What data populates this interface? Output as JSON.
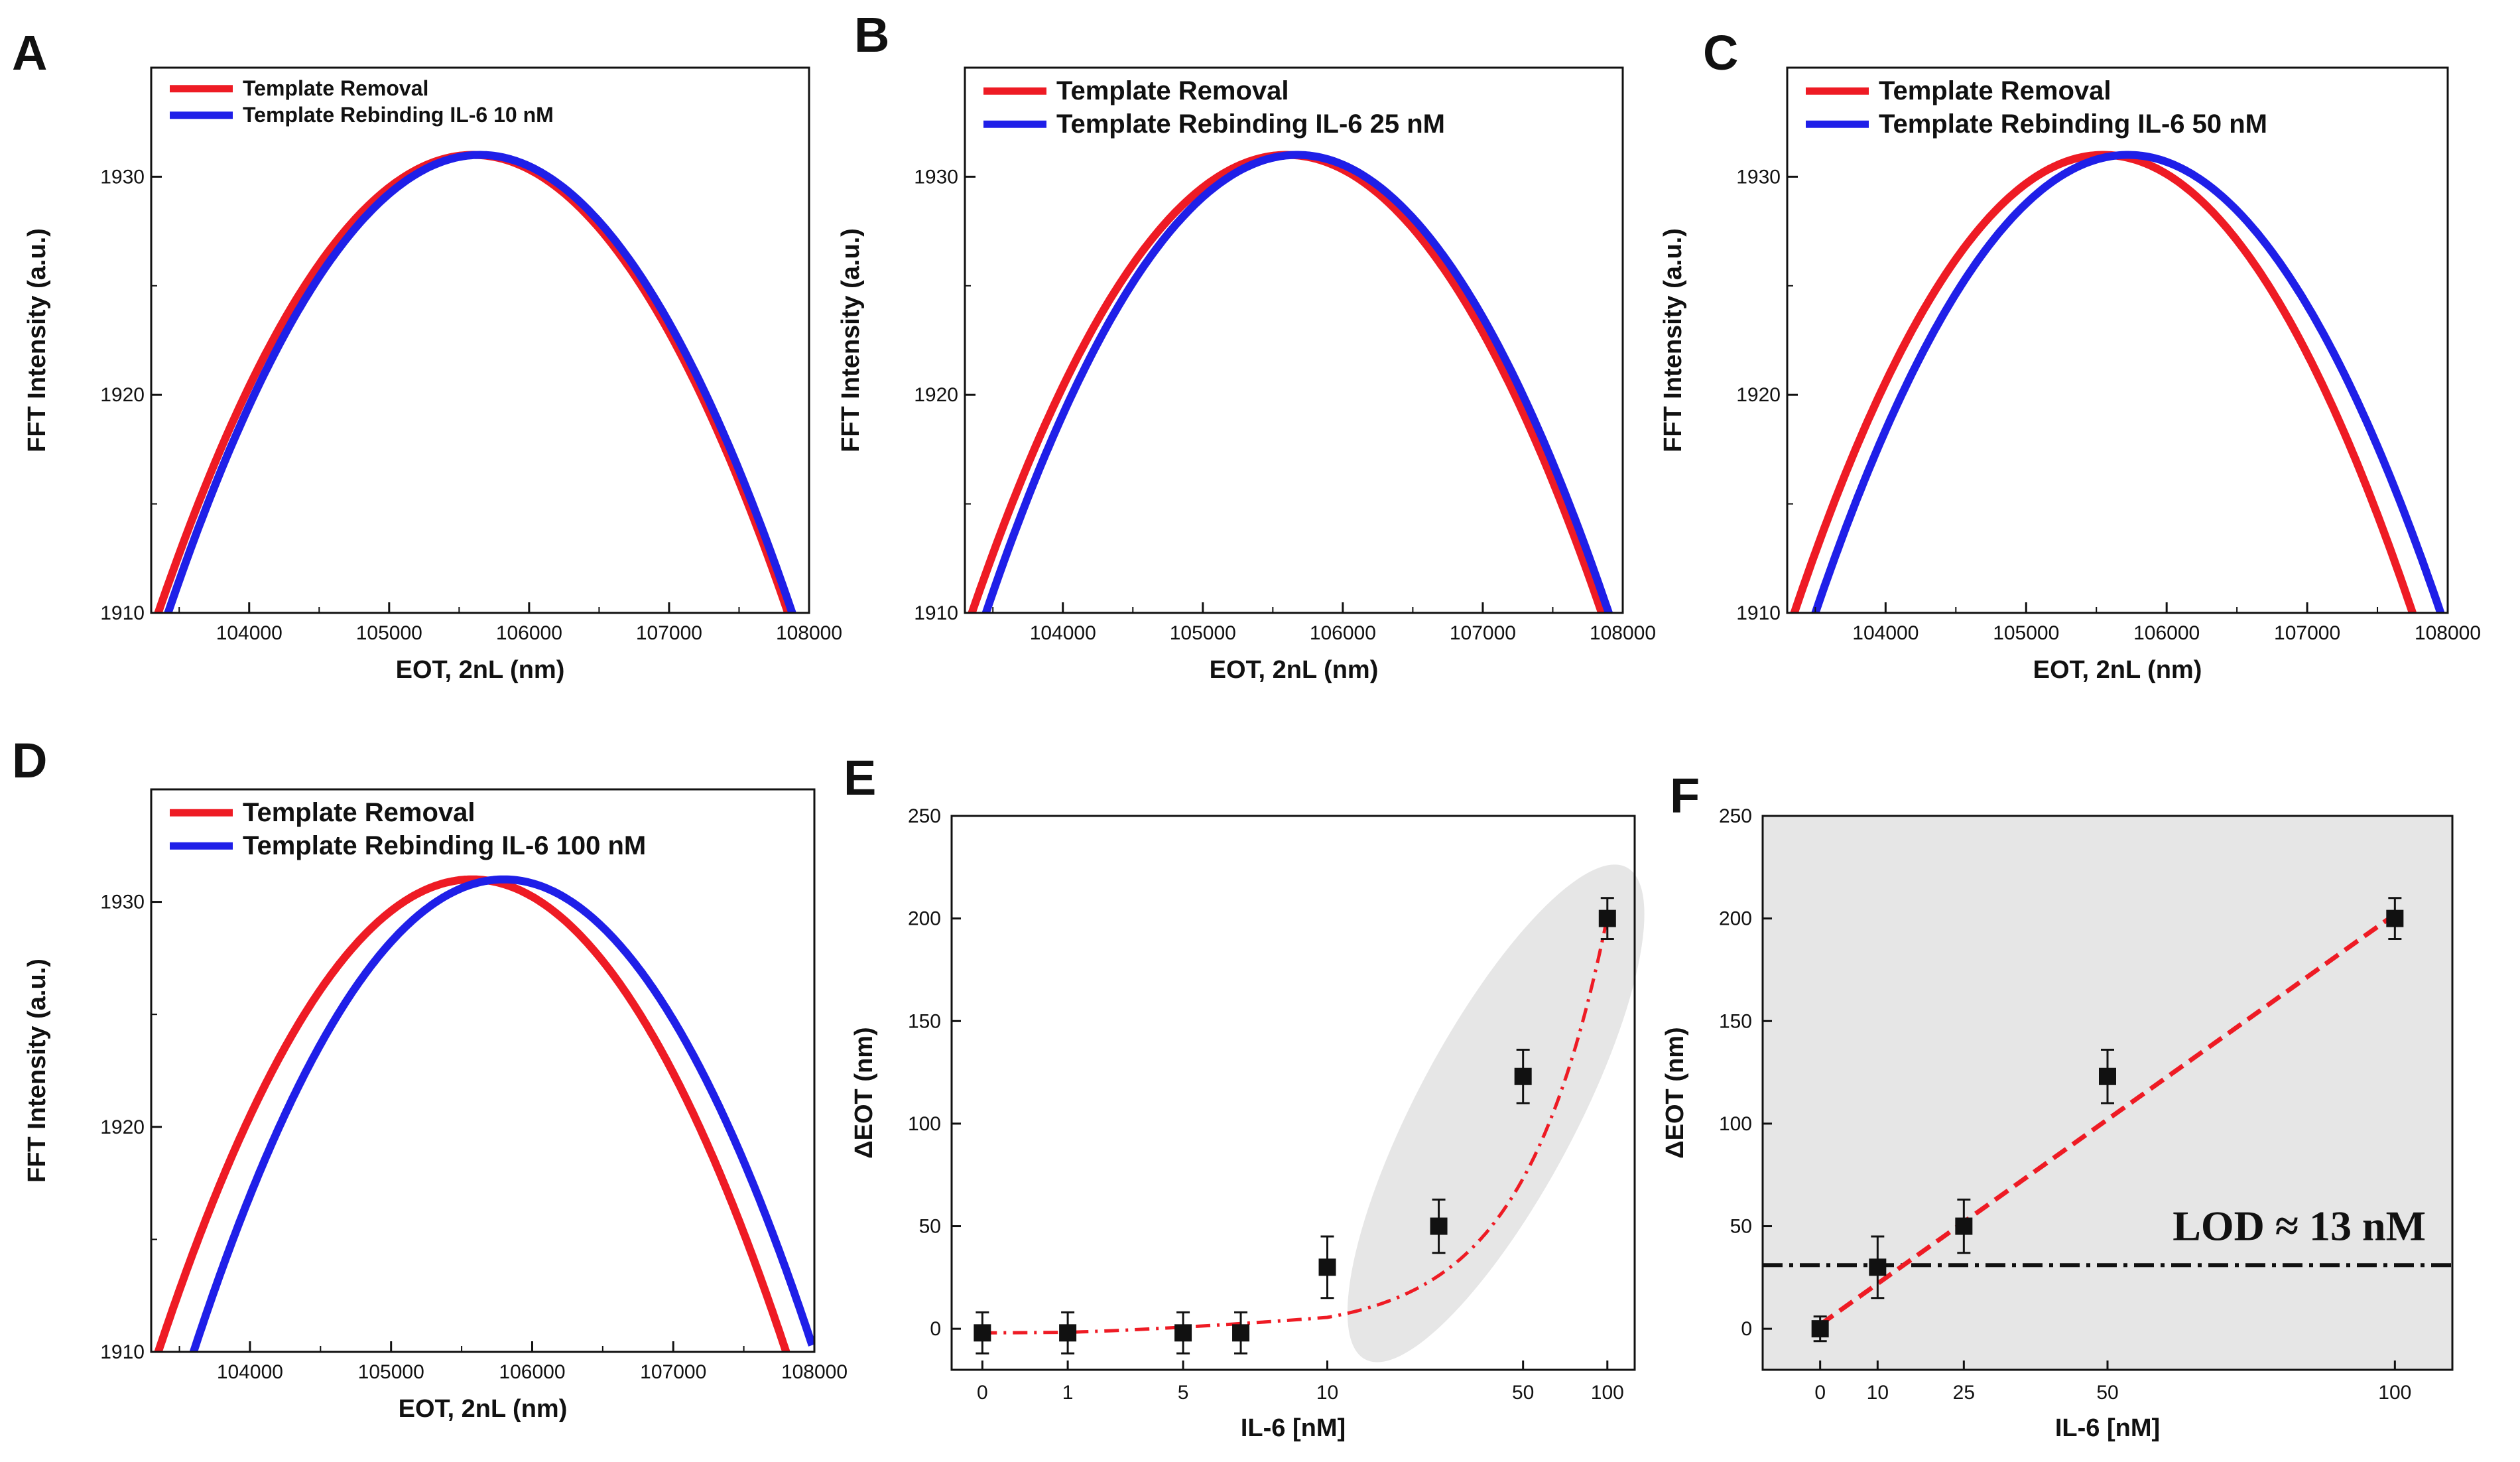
{
  "colors": {
    "removal": "#ee1b24",
    "rebinding": "#1f1fe8",
    "fit": "#ee1b24",
    "shade": "#e6e6e6",
    "marker": "#111111"
  },
  "chart_data": [
    {
      "panel": "A",
      "type": "line",
      "xlabel": "EOT, 2nL (nm)",
      "ylabel": "FFT Intensity (a.u.)",
      "xlim": [
        103300,
        108000
      ],
      "ylim": [
        1910,
        1935
      ],
      "xticks": [
        "104000",
        "105000",
        "106000",
        "107000",
        "108000"
      ],
      "yticks": [
        "1910",
        "1920",
        "1930"
      ],
      "series": [
        {
          "name": "Template Removal",
          "peak_x": 105650,
          "peak_y": 1931,
          "left_x_at_1910": 103350,
          "right_x_at_1910": 107850
        },
        {
          "name": "Template Rebinding IL-6 10 nM",
          "peak_x": 105680,
          "peak_y": 1931,
          "left_x_at_1910": 103420,
          "right_x_at_1910": 107880
        }
      ]
    },
    {
      "panel": "B",
      "type": "line",
      "xlabel": "EOT, 2nL (nm)",
      "ylabel": "FFT Intensity (a.u.)",
      "xlim": [
        103300,
        108000
      ],
      "ylim": [
        1910,
        1935
      ],
      "xticks": [
        "104000",
        "105000",
        "106000",
        "107000",
        "108000"
      ],
      "yticks": [
        "1910",
        "1920",
        "1930"
      ],
      "series": [
        {
          "name": "Template Removal",
          "peak_x": 105650,
          "peak_y": 1931,
          "left_x_at_1910": 103350,
          "right_x_at_1910": 107850
        },
        {
          "name": "Template Rebinding IL-6 25 nM",
          "peak_x": 105700,
          "peak_y": 1931,
          "left_x_at_1910": 103450,
          "right_x_at_1910": 107900
        }
      ]
    },
    {
      "panel": "C",
      "type": "line",
      "xlabel": "EOT, 2nL (nm)",
      "ylabel": "FFT Intensity (a.u.)",
      "xlim": [
        103300,
        108000
      ],
      "ylim": [
        1910,
        1935
      ],
      "xticks": [
        "104000",
        "105000",
        "106000",
        "107000",
        "108000"
      ],
      "yticks": [
        "1910",
        "1920",
        "1930"
      ],
      "series": [
        {
          "name": "Template Removal",
          "peak_x": 105650,
          "peak_y": 1931,
          "left_x_at_1910": 103350,
          "right_x_at_1910": 107750
        },
        {
          "name": "Template Rebinding IL-6 50 nM",
          "peak_x": 105750,
          "peak_y": 1931,
          "left_x_at_1910": 103500,
          "right_x_at_1910": 107950
        }
      ]
    },
    {
      "panel": "D",
      "type": "line",
      "xlabel": "EOT, 2nL (nm)",
      "ylabel": "FFT Intensity (a.u.)",
      "xlim": [
        103300,
        108000
      ],
      "ylim": [
        1910,
        1935
      ],
      "xticks": [
        "104000",
        "105000",
        "106000",
        "107000",
        "108000"
      ],
      "yticks": [
        "1910",
        "1920",
        "1930"
      ],
      "series": [
        {
          "name": "Template Removal",
          "peak_x": 105650,
          "peak_y": 1931,
          "left_x_at_1910": 103350,
          "right_x_at_1910": 107800
        },
        {
          "name": "Template Rebinding IL-6 100 nM",
          "peak_x": 105850,
          "peak_y": 1931,
          "left_x_at_1910": 103600,
          "right_x_at_1910": 108000
        }
      ]
    },
    {
      "panel": "E",
      "type": "scatter",
      "xlabel": "IL-6 [nM]",
      "ylabel": "ΔEOT (nm)",
      "ylim": [
        -20,
        250
      ],
      "xticks": [
        "0",
        "1",
        "5",
        "10",
        "50",
        "100"
      ],
      "yticks": [
        "0",
        "50",
        "100",
        "150",
        "200",
        "250"
      ],
      "points": [
        {
          "x": 0,
          "y": -2,
          "err": 10
        },
        {
          "x": 1,
          "y": -2,
          "err": 10
        },
        {
          "x": 5,
          "y": -2,
          "err": 10
        },
        {
          "x": 7,
          "y": -2,
          "err": 10
        },
        {
          "x": 10,
          "y": 30,
          "err": 15
        },
        {
          "x": 25,
          "y": 50,
          "err": 13
        },
        {
          "x": 50,
          "y": 123,
          "err": 13
        },
        {
          "x": 100,
          "y": 200,
          "err": 10
        }
      ],
      "fit": "dash-dot exponential-like trend"
    },
    {
      "panel": "F",
      "type": "scatter",
      "xlabel": "IL-6 [nM]",
      "ylabel": "ΔEOT (nm)",
      "xlim": [
        -10,
        110
      ],
      "ylim": [
        -20,
        250
      ],
      "xticks": [
        "0",
        "10",
        "25",
        "50",
        "100"
      ],
      "yticks": [
        "0",
        "50",
        "100",
        "150",
        "200",
        "250"
      ],
      "points": [
        {
          "x": 0,
          "y": 0,
          "err": 6
        },
        {
          "x": 10,
          "y": 30,
          "err": 15
        },
        {
          "x": 25,
          "y": 50,
          "err": 13
        },
        {
          "x": 50,
          "y": 123,
          "err": 13
        },
        {
          "x": 100,
          "y": 200,
          "err": 10
        }
      ],
      "fit": {
        "type": "linear",
        "from": [
          0,
          2
        ],
        "to": [
          100,
          202
        ]
      },
      "lod_line_y": 31,
      "annotation": "LOD ≈ 13 nM"
    }
  ]
}
